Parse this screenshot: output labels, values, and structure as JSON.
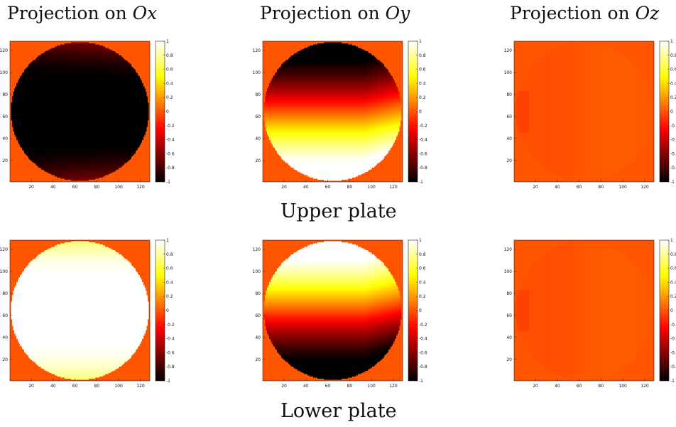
{
  "column_titles": [
    {
      "prefix": "Projection on ",
      "var": "Ox"
    },
    {
      "prefix": "Projection on ",
      "var": "Oy"
    },
    {
      "prefix": "Projection on ",
      "var": "Oz"
    }
  ],
  "row_labels": [
    "Upper plate",
    "Lower plate"
  ],
  "chart_data": {
    "type": "heatmap",
    "colormap": "hot",
    "background_value": 0,
    "grid_size": [
      128,
      128
    ],
    "disk_mask": "circular region, center 64,64, radius 63",
    "x_ticks": [
      20,
      40,
      60,
      80,
      100,
      120
    ],
    "y_ticks": [
      20,
      40,
      60,
      80,
      100,
      120
    ],
    "colorbar_ticks": [
      "1",
      "0.8",
      "0.6",
      "0.4",
      "0.2",
      "0",
      "-0.2",
      "-0.4",
      "-0.6",
      "-0.8",
      "-1"
    ],
    "clim": [
      -1,
      1
    ],
    "panels": [
      {
        "row": "Upper plate",
        "component": "Ox",
        "field": "strongly negative across the disk (~-1 in a horizontal band through the middle), approaching about -0.5 near the top and bottom edges"
      },
      {
        "row": "Upper plate",
        "component": "Oy",
        "field": "about -1 along the top of the disk, rising through 0 near the middle to about +1 at the bottom"
      },
      {
        "row": "Upper plate",
        "component": "Oz",
        "field": "close to 0 everywhere, with slight deviations near the rim"
      },
      {
        "row": "Lower plate",
        "component": "Ox",
        "field": "strongly positive across the disk (~+1 in a horizontal band through the middle), about +0.7 near the top and bottom edges"
      },
      {
        "row": "Lower plate",
        "component": "Oy",
        "field": "about +1 along the top of the disk, falling through 0 near the middle to about -1 at the bottom"
      },
      {
        "row": "Lower plate",
        "component": "Oz",
        "field": "close to 0 everywhere, with slight deviations near the rim"
      }
    ]
  }
}
